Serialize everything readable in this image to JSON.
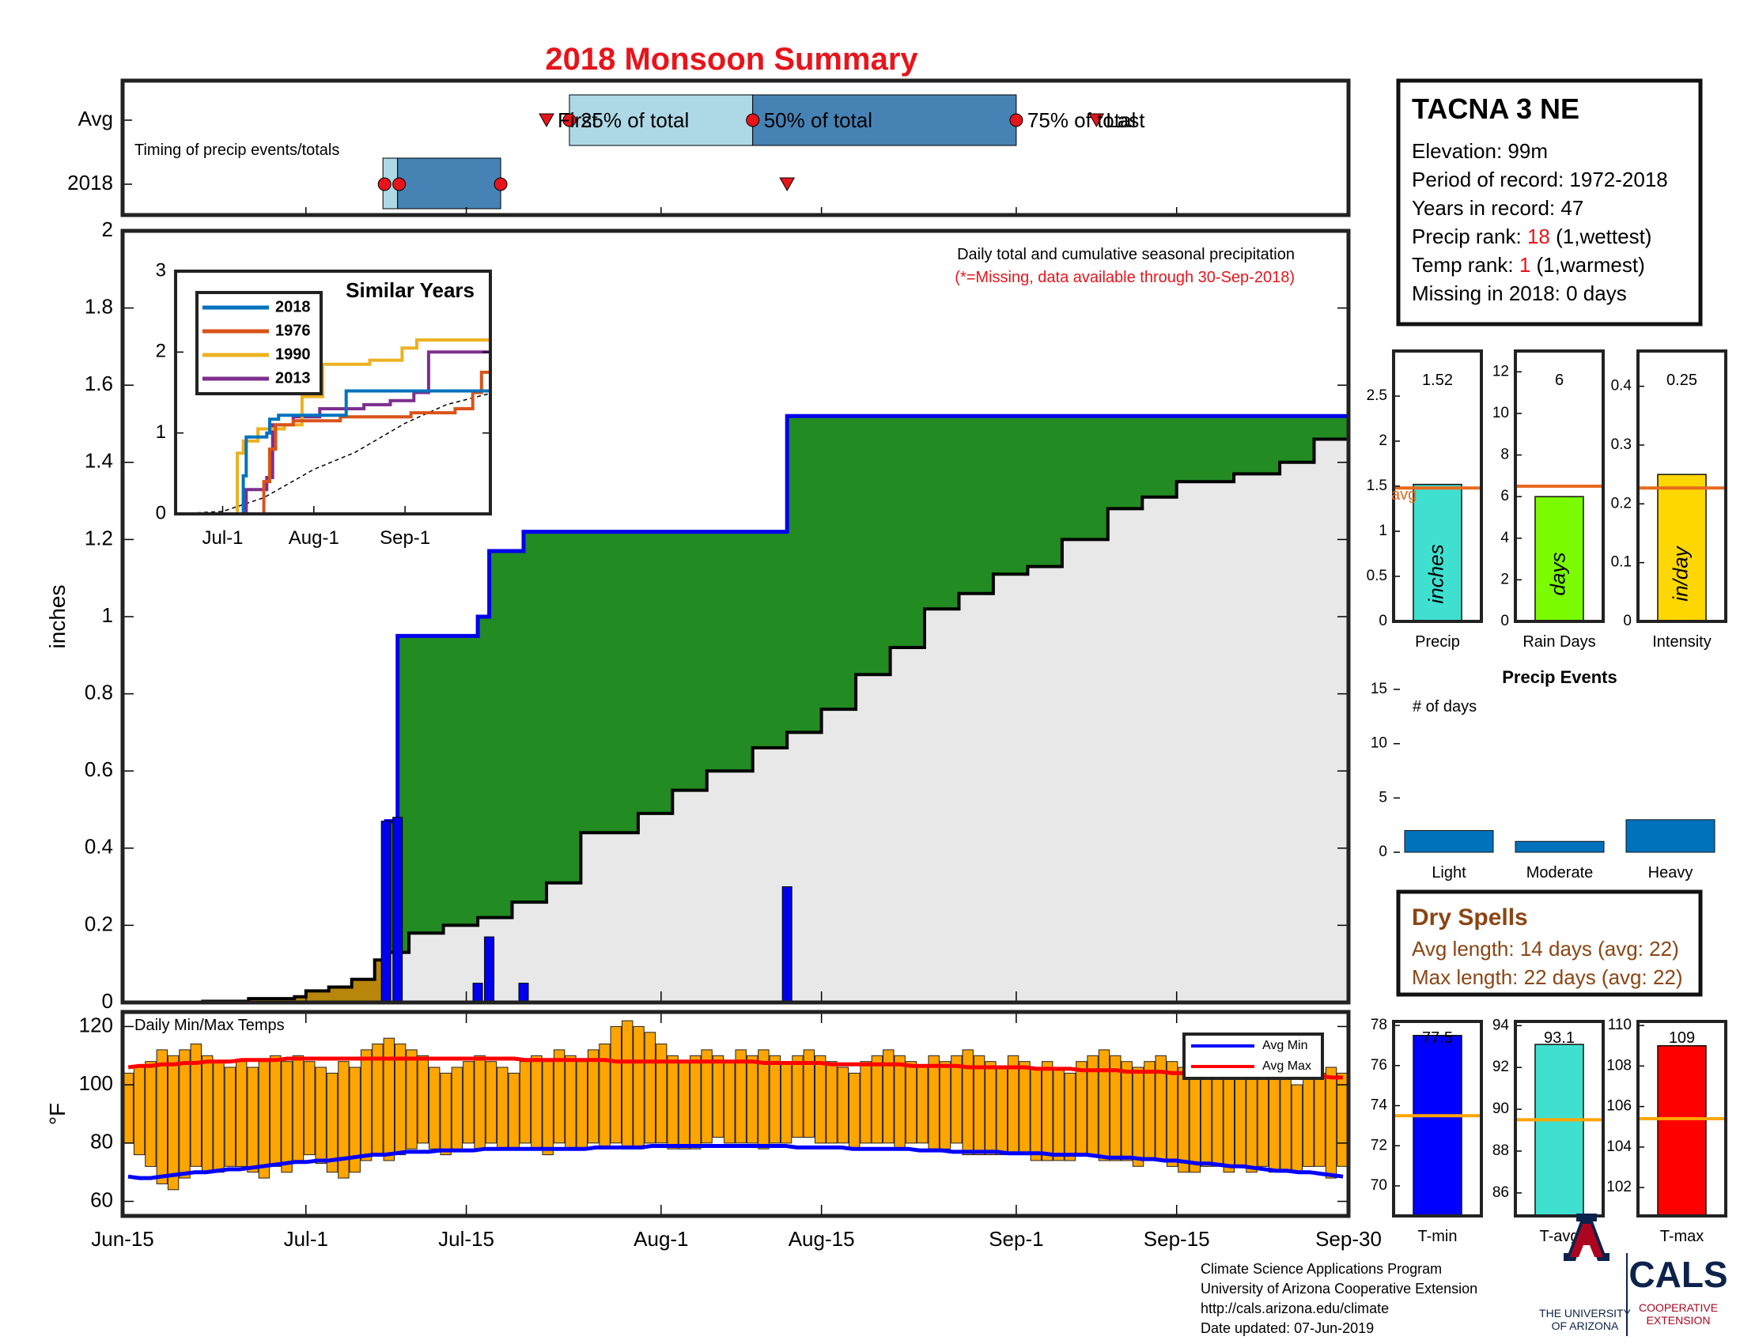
{
  "title": "2018 Monsoon Summary",
  "timing": {
    "caption": "Timing of precip events/totals",
    "rows": [
      "Avg",
      "2018"
    ],
    "labels": {
      "first": "First",
      "q25": "25% of total",
      "q50": "50% of total",
      "q75": "75% of total",
      "last": "Last"
    },
    "avg": {
      "first": "2018-07-22",
      "q25": "2018-07-24",
      "q50": "2018-08-09",
      "q75": "2018-09-01",
      "last": "2018-09-08"
    },
    "y2018": {
      "first": "2018-07-08",
      "q25": "2018-07-09",
      "q50": "2018-07-09",
      "q75": "2018-07-18",
      "last": "2018-08-12"
    },
    "colors": {
      "light": "#add8e6",
      "dark": "#4682b4",
      "marker": "#e8141b"
    }
  },
  "station": {
    "name": "TACNA 3 NE",
    "elevation": "Elevation: 99m",
    "period": "Period of record: 1972-2018",
    "years": "Years in record: 47",
    "precip_rank_label": "Precip rank: ",
    "precip_rank": "18",
    "precip_rank_note": " (1,wettest)",
    "temp_rank_label": "Temp rank: ",
    "temp_rank": "1",
    "temp_rank_note": " (1,warmest)",
    "missing": "Missing in 2018: 0 days"
  },
  "main_chart": {
    "ylabel": "inches",
    "note1": "Daily total and cumulative seasonal precipitation",
    "note2": "(*=Missing, data available through 30-Sep-2018)",
    "x_start": "2018-06-15",
    "x_end": "2018-09-30",
    "x_ticks": [
      {
        "date": "2018-06-15",
        "label": "Jun-15"
      },
      {
        "date": "2018-07-01",
        "label": "Jul-1"
      },
      {
        "date": "2018-07-15",
        "label": "Jul-15"
      },
      {
        "date": "2018-08-01",
        "label": "Aug-1"
      },
      {
        "date": "2018-08-15",
        "label": "Aug-15"
      },
      {
        "date": "2018-09-01",
        "label": "Sep-1"
      },
      {
        "date": "2018-09-15",
        "label": "Sep-15"
      },
      {
        "date": "2018-09-30",
        "label": "Sep-30"
      }
    ],
    "ylim": [
      0,
      2
    ],
    "y_ticks": [
      "0",
      "0.2",
      "0.4",
      "0.6",
      "0.8",
      "1",
      "1.2",
      "1.4",
      "1.6",
      "1.8",
      "2"
    ],
    "daily_precip": [
      {
        "date": "2018-07-08",
        "value": 0.47
      },
      {
        "date": "2018-07-09",
        "value": 0.48
      },
      {
        "date": "2018-07-16",
        "value": 0.05
      },
      {
        "date": "2018-07-17",
        "value": 0.17
      },
      {
        "date": "2018-07-20",
        "value": 0.05
      },
      {
        "date": "2018-08-12",
        "value": 0.3
      }
    ],
    "cumulative_2018": [
      {
        "date": "2018-06-15",
        "value": 0
      },
      {
        "date": "2018-07-08",
        "value": 0.47
      },
      {
        "date": "2018-07-09",
        "value": 0.95
      },
      {
        "date": "2018-07-16",
        "value": 1.0
      },
      {
        "date": "2018-07-17",
        "value": 1.17
      },
      {
        "date": "2018-07-20",
        "value": 1.22
      },
      {
        "date": "2018-08-12",
        "value": 1.52
      },
      {
        "date": "2018-09-30",
        "value": 1.52
      }
    ],
    "cumulative_avg": [
      {
        "date": "2018-06-15",
        "value": 0
      },
      {
        "date": "2018-06-22",
        "value": 0.003
      },
      {
        "date": "2018-06-26",
        "value": 0.01
      },
      {
        "date": "2018-06-30",
        "value": 0.015
      },
      {
        "date": "2018-07-01",
        "value": 0.03
      },
      {
        "date": "2018-07-03",
        "value": 0.04
      },
      {
        "date": "2018-07-05",
        "value": 0.06
      },
      {
        "date": "2018-07-07",
        "value": 0.11
      },
      {
        "date": "2018-07-08",
        "value": 0.13
      },
      {
        "date": "2018-07-10",
        "value": 0.18
      },
      {
        "date": "2018-07-13",
        "value": 0.2
      },
      {
        "date": "2018-07-16",
        "value": 0.22
      },
      {
        "date": "2018-07-19",
        "value": 0.26
      },
      {
        "date": "2018-07-22",
        "value": 0.31
      },
      {
        "date": "2018-07-25",
        "value": 0.44
      },
      {
        "date": "2018-07-30",
        "value": 0.49
      },
      {
        "date": "2018-08-02",
        "value": 0.55
      },
      {
        "date": "2018-08-05",
        "value": 0.6
      },
      {
        "date": "2018-08-09",
        "value": 0.66
      },
      {
        "date": "2018-08-12",
        "value": 0.7
      },
      {
        "date": "2018-08-15",
        "value": 0.76
      },
      {
        "date": "2018-08-18",
        "value": 0.85
      },
      {
        "date": "2018-08-21",
        "value": 0.92
      },
      {
        "date": "2018-08-24",
        "value": 1.02
      },
      {
        "date": "2018-08-27",
        "value": 1.06
      },
      {
        "date": "2018-08-30",
        "value": 1.11
      },
      {
        "date": "2018-09-02",
        "value": 1.13
      },
      {
        "date": "2018-09-05",
        "value": 1.2
      },
      {
        "date": "2018-09-09",
        "value": 1.28
      },
      {
        "date": "2018-09-12",
        "value": 1.31
      },
      {
        "date": "2018-09-15",
        "value": 1.35
      },
      {
        "date": "2018-09-20",
        "value": 1.37
      },
      {
        "date": "2018-09-24",
        "value": 1.4
      },
      {
        "date": "2018-09-27",
        "value": 1.46
      },
      {
        "date": "2018-09-30",
        "value": 1.49
      }
    ],
    "colors": {
      "wet": "#228b22",
      "dry": "#b8860b",
      "avg_fill": "#e8e8e8",
      "cum_line": "#0000ee",
      "bars": "#0000ee"
    }
  },
  "inset": {
    "title": "Similar Years",
    "ylim": [
      0,
      3
    ],
    "y_ticks": [
      "0",
      "1",
      "2",
      "3"
    ],
    "x_start": "2018-06-15",
    "x_end": "2018-09-30",
    "x_ticks": [
      {
        "date": "2018-07-01",
        "label": "Jul-1"
      },
      {
        "date": "2018-08-01",
        "label": "Aug-1"
      },
      {
        "date": "2018-09-01",
        "label": "Sep-1"
      }
    ],
    "series": [
      {
        "name": "2018",
        "color": "#0072bd",
        "points": [
          [
            "2018-06-15",
            0
          ],
          [
            "2018-07-08",
            0.47
          ],
          [
            "2018-07-09",
            0.95
          ],
          [
            "2018-07-16",
            1.0
          ],
          [
            "2018-07-17",
            1.17
          ],
          [
            "2018-07-20",
            1.22
          ],
          [
            "2018-08-12",
            1.52
          ],
          [
            "2018-09-30",
            1.52
          ]
        ]
      },
      {
        "name": "1976",
        "color": "#d95319",
        "points": [
          [
            "2018-06-15",
            0
          ],
          [
            "2018-07-14",
            0
          ],
          [
            "2018-07-15",
            0.4
          ],
          [
            "2018-07-17",
            0.8
          ],
          [
            "2018-07-19",
            1.1
          ],
          [
            "2018-07-25",
            1.15
          ],
          [
            "2018-08-10",
            1.2
          ],
          [
            "2018-09-03",
            1.25
          ],
          [
            "2018-09-18",
            1.3
          ],
          [
            "2018-09-24",
            1.5
          ],
          [
            "2018-09-27",
            1.75
          ],
          [
            "2018-09-30",
            1.75
          ]
        ]
      },
      {
        "name": "1990",
        "color": "#edb120",
        "points": [
          [
            "2018-06-15",
            0
          ],
          [
            "2018-07-04",
            0
          ],
          [
            "2018-07-06",
            0.75
          ],
          [
            "2018-07-08",
            0.9
          ],
          [
            "2018-07-13",
            1.05
          ],
          [
            "2018-07-22",
            1.1
          ],
          [
            "2018-07-28",
            1.45
          ],
          [
            "2018-08-04",
            1.85
          ],
          [
            "2018-08-20",
            1.9
          ],
          [
            "2018-08-31",
            2.05
          ],
          [
            "2018-09-05",
            2.15
          ],
          [
            "2018-09-30",
            2.15
          ]
        ]
      },
      {
        "name": "2013",
        "color": "#7e2f8e",
        "points": [
          [
            "2018-06-15",
            0
          ],
          [
            "2018-07-08",
            0
          ],
          [
            "2018-07-09",
            0.3
          ],
          [
            "2018-07-16",
            0.45
          ],
          [
            "2018-07-18",
            1.1
          ],
          [
            "2018-07-25",
            1.2
          ],
          [
            "2018-08-03",
            1.3
          ],
          [
            "2018-08-18",
            1.35
          ],
          [
            "2018-08-27",
            1.4
          ],
          [
            "2018-09-04",
            1.5
          ],
          [
            "2018-09-09",
            2.0
          ],
          [
            "2018-09-30",
            2.0
          ]
        ]
      }
    ],
    "avg_points": [
      [
        "2018-06-15",
        0
      ],
      [
        "2018-07-01",
        0.03
      ],
      [
        "2018-07-15",
        0.2
      ],
      [
        "2018-08-01",
        0.55
      ],
      [
        "2018-08-15",
        0.76
      ],
      [
        "2018-09-01",
        1.12
      ],
      [
        "2018-09-15",
        1.35
      ],
      [
        "2018-09-30",
        1.49
      ]
    ]
  },
  "summary_bars": [
    {
      "label": "Precip",
      "value": 1.52,
      "value_label": "1.52",
      "avg": 1.48,
      "unit": "inches",
      "ylim": [
        0,
        3
      ],
      "y_ticks": [
        "0",
        "0.5",
        "1",
        "1.5",
        "2",
        "2.5"
      ],
      "color": "#40e0d0",
      "avg_label": "avg"
    },
    {
      "label": "Rain Days",
      "value": 6,
      "value_label": "6",
      "avg": 6.5,
      "unit": "days",
      "ylim": [
        0,
        13
      ],
      "y_ticks": [
        "0",
        "2",
        "4",
        "6",
        "8",
        "10",
        "12"
      ],
      "color": "#7cfc00"
    },
    {
      "label": "Intensity",
      "value": 0.25,
      "value_label": "0.25",
      "avg": 0.227,
      "unit": "in/day",
      "ylim": [
        0,
        0.46
      ],
      "y_ticks": [
        "0",
        "0.1",
        "0.2",
        "0.3",
        "0.4"
      ],
      "color": "#ffd700"
    }
  ],
  "avg_line_color": "#e86a1f",
  "events": {
    "title": "Precip Events",
    "ylabel": "# of days",
    "ylim": [
      0,
      15
    ],
    "y_ticks": [
      "0",
      "5",
      "10",
      "15"
    ],
    "categories": [
      "Light",
      "Moderate",
      "Heavy"
    ],
    "values": [
      2,
      1,
      3
    ],
    "color": "#0072bd"
  },
  "dry_spells": {
    "title": "Dry Spells",
    "avg_length": "Avg length: 14 days (avg: 22)",
    "max_length": "Max length: 22 days (avg: 22)",
    "color": "#8b4513"
  },
  "temps": {
    "title": "Daily Min/Max Temps",
    "ylabel": "°F",
    "ylim": [
      55,
      125
    ],
    "y_ticks": [
      "60",
      "80",
      "100",
      "120"
    ],
    "legend": [
      "Avg Min",
      "Avg Max"
    ],
    "bar_color": "#ffa500",
    "min": [
      80,
      76,
      72,
      66,
      64,
      68,
      72,
      70,
      70,
      72,
      72,
      70,
      68,
      72,
      70,
      74,
      76,
      73,
      70,
      68,
      70,
      74,
      76,
      74,
      76,
      78,
      80,
      78,
      76,
      77,
      80,
      78,
      80,
      78,
      78,
      80,
      78,
      76,
      80,
      78,
      78,
      80,
      78,
      80,
      78,
      78,
      80,
      80,
      78,
      78,
      78,
      80,
      82,
      80,
      80,
      80,
      78,
      80,
      80,
      82,
      82,
      80,
      80,
      80,
      78,
      80,
      80,
      80,
      78,
      80,
      80,
      78,
      78,
      80,
      76,
      76,
      76,
      76,
      76,
      76,
      74,
      74,
      74,
      74,
      76,
      76,
      74,
      74,
      74,
      72,
      74,
      74,
      72,
      70,
      70,
      72,
      72,
      70,
      72,
      70,
      72,
      70,
      70,
      70,
      72,
      72,
      68,
      72
    ],
    "max": [
      104,
      106,
      108,
      112,
      110,
      112,
      114,
      110,
      108,
      106,
      108,
      106,
      108,
      110,
      108,
      110,
      108,
      106,
      104,
      108,
      106,
      112,
      114,
      116,
      114,
      112,
      110,
      106,
      104,
      106,
      108,
      110,
      108,
      106,
      104,
      108,
      110,
      108,
      112,
      110,
      108,
      112,
      114,
      120,
      122,
      120,
      118,
      114,
      110,
      108,
      110,
      112,
      110,
      108,
      112,
      110,
      112,
      110,
      108,
      110,
      112,
      110,
      108,
      106,
      104,
      108,
      110,
      112,
      110,
      108,
      106,
      110,
      108,
      110,
      112,
      110,
      108,
      106,
      110,
      108,
      106,
      108,
      106,
      104,
      108,
      110,
      112,
      110,
      108,
      106,
      108,
      110,
      108,
      106,
      108,
      110,
      112,
      110,
      108,
      106,
      104,
      106,
      108,
      100,
      102,
      104,
      106,
      104
    ],
    "avg_min": [
      68.5,
      68,
      68,
      68.5,
      69,
      69.5,
      70,
      70,
      70.5,
      71,
      71,
      71.5,
      72,
      72.5,
      73,
      73.5,
      73.5,
      74,
      74,
      74.5,
      75,
      75.5,
      76,
      76,
      76.5,
      77,
      77,
      77,
      77.5,
      77.5,
      77.5,
      77.5,
      78,
      78,
      78,
      78,
      78,
      78,
      78,
      78,
      78,
      78,
      78.5,
      78.5,
      78.5,
      78.5,
      78.5,
      79,
      79,
      79,
      79,
      79,
      79,
      79,
      79,
      79,
      79,
      79,
      79,
      79,
      78.5,
      78.5,
      78.5,
      78.5,
      78.5,
      78,
      78,
      78,
      78,
      78,
      78,
      77.5,
      77.5,
      77.5,
      77,
      77,
      77,
      77,
      77,
      76.5,
      76.5,
      76.5,
      76.5,
      76,
      76,
      76,
      76,
      75.5,
      75,
      75,
      75,
      74.5,
      74.5,
      74,
      74,
      73.5,
      73,
      73,
      72.5,
      72,
      72,
      71.5,
      71,
      70.5,
      70.5,
      70,
      70,
      69.5,
      69,
      68.5
    ],
    "avg_max": [
      106,
      106.5,
      106.5,
      107,
      107,
      107.5,
      107.5,
      108,
      108,
      108,
      108.5,
      108.5,
      108.5,
      108.5,
      109,
      109,
      109,
      109,
      109,
      109,
      109,
      109,
      109,
      109,
      109,
      109,
      109,
      109,
      109,
      109,
      109,
      109,
      109,
      109,
      109,
      108.5,
      108.5,
      108.5,
      108.5,
      108.5,
      108.5,
      108.5,
      108.5,
      108,
      108,
      108,
      108,
      108,
      108,
      108,
      108,
      108,
      108,
      108,
      108,
      108,
      107.5,
      107.5,
      107.5,
      107.5,
      107.5,
      107.5,
      107,
      107,
      107,
      107,
      107,
      107,
      107,
      106.5,
      106.5,
      106.5,
      106.5,
      106.5,
      106,
      106,
      106,
      106,
      106,
      106,
      105.5,
      105.5,
      105.5,
      105.5,
      105,
      105,
      105,
      105,
      104.5,
      104.5,
      104.5,
      104.5,
      104,
      104,
      104,
      104,
      104,
      103.5,
      103.5,
      103.5,
      103.5,
      103,
      103,
      103,
      103,
      103,
      102.5,
      102.5
    ]
  },
  "temp_bars": [
    {
      "label": "T-min",
      "value": 77.5,
      "value_label": "77.5",
      "avg": 73.5,
      "ylim": [
        68.5,
        78.2
      ],
      "y_ticks": [
        "70",
        "72",
        "74",
        "76",
        "78"
      ],
      "color": "#0000ff"
    },
    {
      "label": "T-avg",
      "value": 93.1,
      "value_label": "93.1",
      "avg": 89.5,
      "ylim": [
        84.9,
        94.2
      ],
      "y_ticks": [
        "86",
        "88",
        "90",
        "92",
        "94"
      ],
      "color": "#40e0d0"
    },
    {
      "label": "T-max",
      "value": 109,
      "value_label": "109",
      "avg": 105.4,
      "ylim": [
        100.6,
        110.2
      ],
      "y_ticks": [
        "102",
        "104",
        "106",
        "108",
        "110"
      ],
      "color": "#ff0000"
    }
  ],
  "footer": {
    "line1": "Climate Science Applications Program",
    "line2": "University of Arizona Cooperative Extension",
    "line3": "http://cals.arizona.edu/climate",
    "line4": " Date updated: 07-Jun-2019"
  },
  "logo": {
    "ua_line1": "THE UNIVERSITY",
    "ua_line2": "OF ARIZONA",
    "cals": "CALS",
    "cals_line1": "COOPERATIVE",
    "cals_line2": "EXTENSION",
    "ua_red": "#ab0520",
    "ua_blue": "#0c234b"
  }
}
